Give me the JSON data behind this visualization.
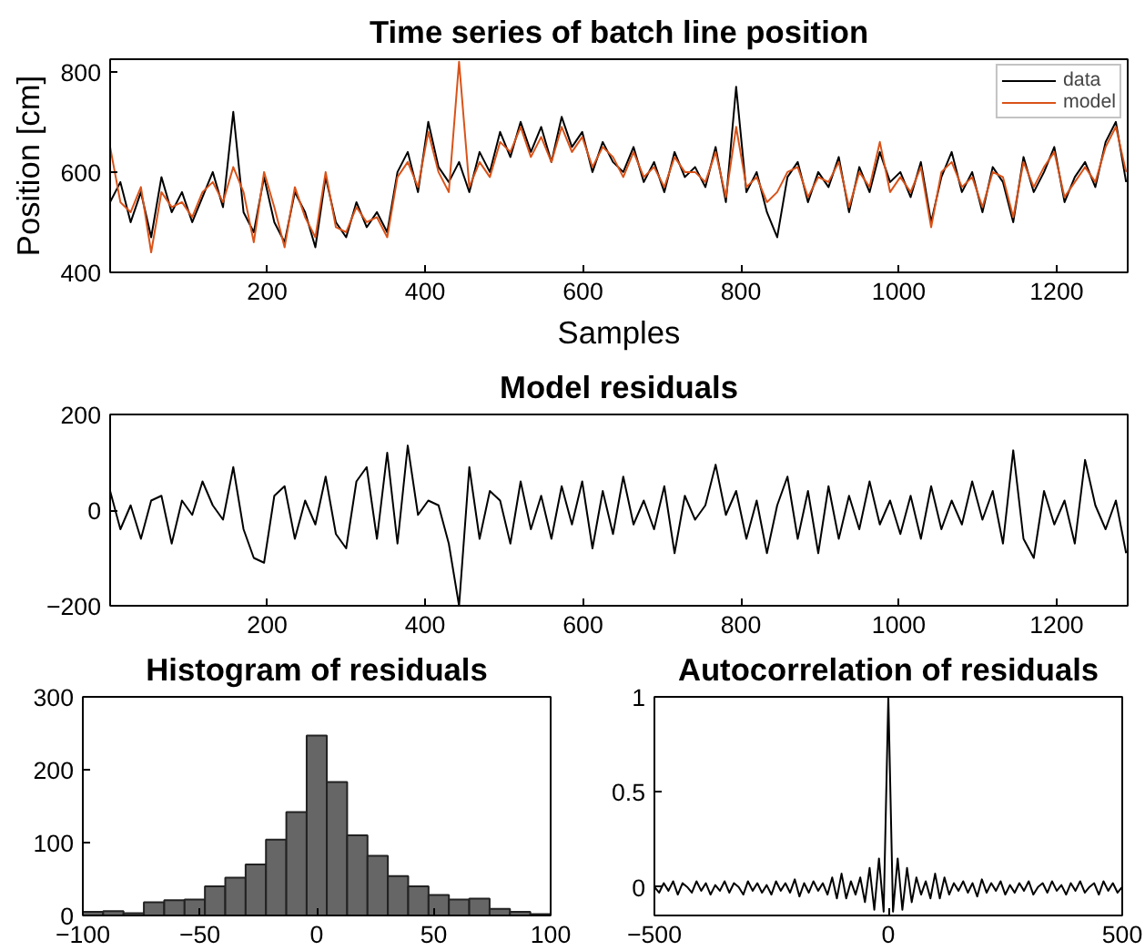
{
  "chart_data": [
    {
      "type": "line",
      "title": "Time series of batch line position",
      "xlabel": "Samples",
      "ylabel": "Position [cm]",
      "xlim": [
        1,
        1290
      ],
      "ylim": [
        400,
        825
      ],
      "xticks": [
        200,
        400,
        600,
        800,
        1000,
        1200
      ],
      "yticks": [
        400,
        600,
        800
      ],
      "grid": false,
      "legend": "top right",
      "x": [
        1,
        14,
        27,
        40,
        53,
        66,
        79,
        92,
        105,
        118,
        131,
        144,
        157,
        170,
        183,
        196,
        209,
        222,
        235,
        248,
        261,
        274,
        287,
        300,
        313,
        326,
        339,
        352,
        365,
        378,
        391,
        404,
        417,
        430,
        443,
        456,
        469,
        482,
        495,
        508,
        521,
        534,
        547,
        560,
        573,
        586,
        599,
        612,
        625,
        638,
        651,
        664,
        677,
        690,
        703,
        716,
        729,
        742,
        755,
        768,
        781,
        794,
        807,
        820,
        833,
        846,
        859,
        872,
        885,
        898,
        911,
        924,
        937,
        950,
        963,
        976,
        989,
        1002,
        1015,
        1028,
        1041,
        1054,
        1067,
        1080,
        1093,
        1106,
        1119,
        1132,
        1145,
        1158,
        1171,
        1184,
        1197,
        1210,
        1223,
        1236,
        1249,
        1262,
        1275,
        1288
      ],
      "series": [
        {
          "name": "data",
          "color": "#000000",
          "values": [
            540,
            580,
            500,
            560,
            470,
            590,
            520,
            560,
            500,
            550,
            600,
            530,
            720,
            520,
            480,
            590,
            500,
            460,
            560,
            520,
            450,
            590,
            500,
            470,
            540,
            490,
            520,
            480,
            600,
            640,
            560,
            700,
            610,
            580,
            620,
            560,
            640,
            600,
            680,
            630,
            700,
            640,
            690,
            620,
            710,
            650,
            680,
            600,
            660,
            620,
            600,
            650,
            580,
            620,
            560,
            640,
            590,
            610,
            570,
            650,
            540,
            770,
            560,
            600,
            520,
            470,
            590,
            620,
            540,
            600,
            570,
            630,
            520,
            610,
            560,
            640,
            580,
            600,
            550,
            620,
            500,
            590,
            640,
            560,
            600,
            520,
            610,
            580,
            500,
            630,
            560,
            600,
            650,
            540,
            590,
            620,
            570,
            660,
            700,
            580
          ]
        },
        {
          "name": "model",
          "color": "#d95319",
          "values": [
            650,
            540,
            520,
            570,
            440,
            560,
            530,
            540,
            510,
            560,
            580,
            540,
            610,
            560,
            460,
            600,
            530,
            450,
            570,
            510,
            470,
            600,
            490,
            480,
            530,
            500,
            510,
            470,
            590,
            620,
            570,
            680,
            600,
            560,
            820,
            570,
            620,
            590,
            660,
            640,
            690,
            630,
            670,
            620,
            690,
            640,
            670,
            610,
            650,
            630,
            590,
            640,
            590,
            610,
            570,
            630,
            600,
            600,
            580,
            640,
            550,
            690,
            570,
            590,
            540,
            560,
            600,
            610,
            550,
            590,
            580,
            620,
            530,
            600,
            570,
            660,
            560,
            590,
            560,
            610,
            490,
            600,
            620,
            570,
            590,
            530,
            600,
            590,
            510,
            620,
            570,
            610,
            640,
            550,
            580,
            610,
            580,
            650,
            690,
            600
          ]
        }
      ]
    },
    {
      "type": "line",
      "title": "Model residuals",
      "xlim": [
        1,
        1290
      ],
      "ylim": [
        -200,
        200
      ],
      "xticks": [
        200,
        400,
        600,
        800,
        1000,
        1200
      ],
      "yticks": [
        -200,
        0,
        200
      ],
      "grid": false,
      "x": [
        1,
        14,
        27,
        40,
        53,
        66,
        79,
        92,
        105,
        118,
        131,
        144,
        157,
        170,
        183,
        196,
        209,
        222,
        235,
        248,
        261,
        274,
        287,
        300,
        313,
        326,
        339,
        352,
        365,
        378,
        391,
        404,
        417,
        430,
        443,
        456,
        469,
        482,
        495,
        508,
        521,
        534,
        547,
        560,
        573,
        586,
        599,
        612,
        625,
        638,
        651,
        664,
        677,
        690,
        703,
        716,
        729,
        742,
        755,
        768,
        781,
        794,
        807,
        820,
        833,
        846,
        859,
        872,
        885,
        898,
        911,
        924,
        937,
        950,
        963,
        976,
        989,
        1002,
        1015,
        1028,
        1041,
        1054,
        1067,
        1080,
        1093,
        1106,
        1119,
        1132,
        1145,
        1158,
        1171,
        1184,
        1197,
        1210,
        1223,
        1236,
        1249,
        1262,
        1275,
        1288
      ],
      "series": [
        {
          "color": "#000000",
          "values": [
            40,
            -40,
            10,
            -60,
            20,
            30,
            -70,
            20,
            -10,
            60,
            10,
            -20,
            90,
            -40,
            -100,
            -110,
            30,
            50,
            -60,
            20,
            -30,
            70,
            -50,
            -80,
            60,
            90,
            -60,
            120,
            -70,
            135,
            -10,
            20,
            10,
            -70,
            -200,
            90,
            -60,
            40,
            20,
            -70,
            60,
            -40,
            30,
            -60,
            50,
            -30,
            60,
            -80,
            40,
            -50,
            70,
            -30,
            20,
            -40,
            50,
            -90,
            30,
            -20,
            10,
            95,
            -10,
            40,
            -60,
            20,
            -90,
            10,
            70,
            -60,
            40,
            -90,
            50,
            -60,
            30,
            -40,
            60,
            -30,
            20,
            -50,
            30,
            -60,
            50,
            -40,
            20,
            -30,
            60,
            -20,
            40,
            -70,
            125,
            -60,
            -100,
            40,
            -30,
            20,
            -70,
            105,
            10,
            -40,
            20,
            -90
          ]
        }
      ]
    },
    {
      "type": "histogram",
      "title": "Histogram of residuals",
      "xlim": [
        -100,
        100
      ],
      "ylim": [
        0,
        300
      ],
      "xticks": [
        -100,
        -50,
        0,
        50,
        100
      ],
      "yticks": [
        0,
        100,
        200,
        300
      ],
      "grid": false,
      "bins": [
        -100,
        -91.3,
        -82.6,
        -73.9,
        -65.2,
        -56.5,
        -47.8,
        -39.1,
        -30.4,
        -21.7,
        -13,
        -4.3,
        4.3,
        13,
        21.7,
        30.4,
        39.1,
        47.8,
        56.5,
        65.2,
        73.9,
        82.6,
        91.3,
        100
      ],
      "series": [
        {
          "color": "#666666",
          "values": [
            5,
            6,
            3,
            18,
            21,
            22,
            40,
            52,
            70,
            104,
            142,
            247,
            183,
            110,
            82,
            54,
            40,
            28,
            22,
            23,
            9,
            5,
            2
          ]
        }
      ]
    },
    {
      "type": "line",
      "title": "Autocorrelation of residuals",
      "xlim": [
        -500,
        500
      ],
      "ylim": [
        -0.15,
        1
      ],
      "xticks": [
        -500,
        0,
        500
      ],
      "yticks": [
        0,
        0.5,
        1
      ],
      "grid": false,
      "x": [
        -500,
        -490,
        -480,
        -470,
        -460,
        -450,
        -440,
        -430,
        -420,
        -410,
        -400,
        -390,
        -380,
        -370,
        -360,
        -350,
        -340,
        -330,
        -320,
        -310,
        -300,
        -290,
        -280,
        -270,
        -260,
        -250,
        -240,
        -230,
        -220,
        -210,
        -200,
        -190,
        -180,
        -170,
        -160,
        -150,
        -140,
        -130,
        -120,
        -110,
        -100,
        -90,
        -80,
        -70,
        -60,
        -50,
        -40,
        -30,
        -20,
        -10,
        0,
        10,
        20,
        30,
        40,
        50,
        60,
        70,
        80,
        90,
        100,
        110,
        120,
        130,
        140,
        150,
        160,
        170,
        180,
        190,
        200,
        210,
        220,
        230,
        240,
        250,
        260,
        270,
        280,
        290,
        300,
        310,
        320,
        330,
        340,
        350,
        360,
        370,
        380,
        390,
        400,
        410,
        420,
        430,
        440,
        450,
        460,
        470,
        480,
        490,
        500
      ],
      "series": [
        {
          "color": "#000000",
          "values": [
            0,
            -0.03,
            0.02,
            -0.02,
            0.03,
            -0.04,
            0.02,
            0,
            -0.03,
            0.03,
            -0.02,
            0.02,
            -0.04,
            0.01,
            -0.02,
            0.03,
            -0.03,
            0.02,
            0,
            -0.04,
            0.03,
            -0.02,
            0.02,
            -0.03,
            0.01,
            -0.04,
            0.03,
            -0.02,
            0.02,
            -0.03,
            0.04,
            -0.05,
            0.02,
            -0.03,
            0.03,
            -0.02,
            0.02,
            -0.04,
            0.05,
            -0.06,
            0.07,
            -0.06,
            0.03,
            -0.04,
            0.05,
            -0.08,
            0.1,
            -0.12,
            0.15,
            -0.13,
            1,
            -0.13,
            0.15,
            -0.12,
            0.1,
            -0.08,
            0.05,
            -0.04,
            0.03,
            -0.06,
            0.07,
            -0.06,
            0.05,
            -0.04,
            0.02,
            -0.02,
            0.03,
            -0.03,
            0.02,
            -0.05,
            0.04,
            -0.03,
            0.02,
            -0.02,
            0.03,
            -0.04,
            0.01,
            -0.03,
            0.02,
            -0.02,
            0.03,
            -0.04,
            0,
            0.02,
            -0.03,
            0.03,
            -0.02,
            0.01,
            -0.04,
            0.02,
            -0.02,
            0.03,
            -0.03,
            0,
            0.02,
            -0.04,
            0.03,
            -0.02,
            0.02,
            -0.03,
            0
          ]
        }
      ]
    }
  ]
}
